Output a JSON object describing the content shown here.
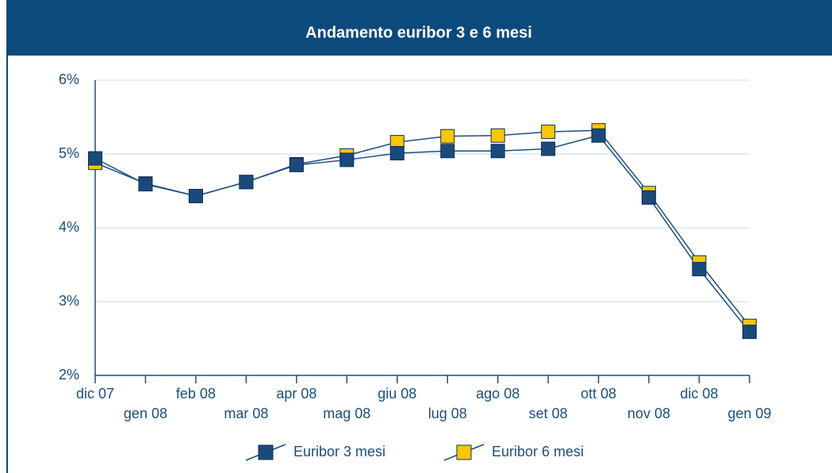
{
  "chart_data": {
    "type": "line",
    "title": "Andamento euribor 3 e 6 mesi",
    "categories": [
      "dic 07",
      "gen 08",
      "feb 08",
      "mar 08",
      "apr 08",
      "mag 08",
      "giu 08",
      "lug 08",
      "ago 08",
      "set 08",
      "ott 08",
      "nov 08",
      "dic 08",
      "gen 09"
    ],
    "series": [
      {
        "name": "Euribor 3 mesi",
        "color": "#1a4a7c",
        "values": [
          4.94,
          4.59,
          4.43,
          4.62,
          4.85,
          4.92,
          5.01,
          5.04,
          5.04,
          5.07,
          5.25,
          4.41,
          3.44,
          2.59
        ]
      },
      {
        "name": "Euribor 6 mesi",
        "color": "#f7c800",
        "values": [
          4.88,
          4.6,
          4.43,
          4.62,
          4.86,
          4.98,
          5.16,
          5.24,
          5.25,
          5.3,
          5.32,
          4.47,
          3.53,
          2.67
        ]
      }
    ],
    "ylim": [
      2,
      6
    ],
    "yticks": [
      {
        "value": 2,
        "label": "2%"
      },
      {
        "value": 3,
        "label": "3%"
      },
      {
        "value": 4,
        "label": "4%"
      },
      {
        "value": 5,
        "label": "5%"
      },
      {
        "value": 6,
        "label": "6%"
      }
    ],
    "grid": true
  }
}
